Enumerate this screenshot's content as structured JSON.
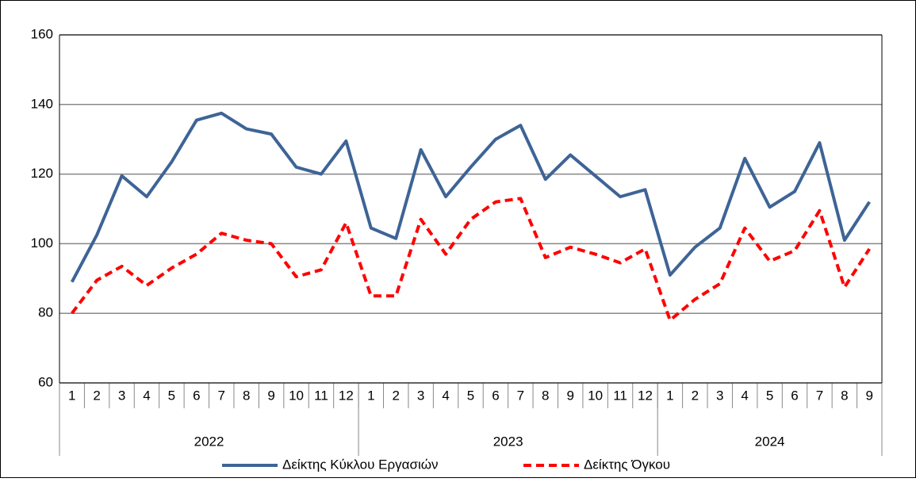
{
  "chart_data": {
    "type": "line",
    "groups": [
      {
        "label": "2022",
        "categories": [
          "1",
          "2",
          "3",
          "4",
          "5",
          "6",
          "7",
          "8",
          "9",
          "10",
          "11",
          "12"
        ]
      },
      {
        "label": "2023",
        "categories": [
          "1",
          "2",
          "3",
          "4",
          "5",
          "6",
          "7",
          "8",
          "9",
          "10",
          "11",
          "12"
        ]
      },
      {
        "label": "2024",
        "categories": [
          "1",
          "2",
          "3",
          "4",
          "5",
          "6",
          "7",
          "8",
          "9"
        ]
      }
    ],
    "series": [
      {
        "name": "Δείκτης Κύκλου Εργασιών",
        "color": "#3e6496",
        "dashed": false,
        "values": [
          89,
          102.5,
          119.5,
          113.5,
          123.5,
          135.5,
          137.5,
          133,
          131.5,
          122,
          120,
          129.5,
          104.5,
          101.5,
          127,
          113.5,
          122,
          130,
          134,
          118.5,
          125.5,
          119.5,
          113.5,
          115.5,
          91,
          99,
          104.5,
          124.5,
          110.5,
          115,
          129,
          101,
          112
        ]
      },
      {
        "name": "Δείκτης Όγκου",
        "color": "#ff0000",
        "dashed": true,
        "values": [
          80,
          89.5,
          93.5,
          88,
          93,
          97,
          103,
          101,
          100,
          90.5,
          92.5,
          106,
          85,
          85,
          107,
          97,
          107,
          112,
          113,
          96,
          99,
          97,
          94.5,
          98.5,
          78,
          84,
          88.5,
          104.5,
          95,
          98,
          109.5,
          87.5,
          98.5
        ]
      }
    ],
    "ylim": [
      60,
      160
    ],
    "yticks": [
      60,
      80,
      100,
      120,
      140,
      160
    ],
    "grid": true,
    "legend": "bottom"
  }
}
